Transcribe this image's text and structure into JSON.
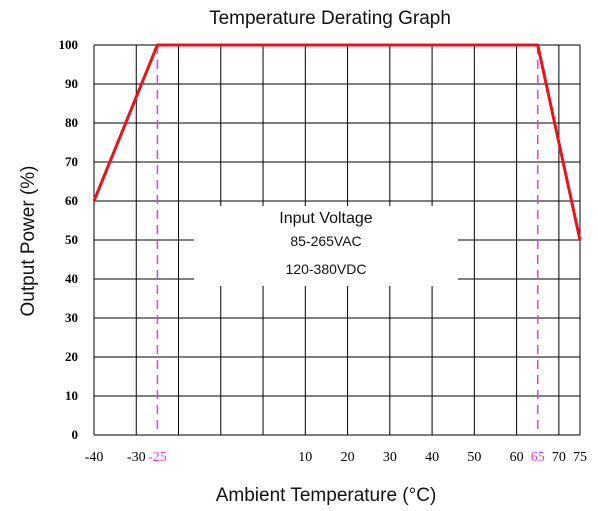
{
  "chart_data": {
    "type": "line",
    "title": "Temperature Derating Graph",
    "xlabel": "Ambient Temperature (°C)",
    "ylabel": "Output Power (%)",
    "xlim": [
      -40,
      75
    ],
    "ylim": [
      0,
      100
    ],
    "grid": true,
    "x_tick_labels": [
      "-40",
      "-30",
      "-25",
      "10",
      "20",
      "30",
      "40",
      "50",
      "60",
      "65",
      "70",
      "75"
    ],
    "x_tick_values": [
      -40,
      -30,
      -25,
      10,
      20,
      30,
      40,
      50,
      60,
      65,
      70,
      75
    ],
    "x_grid_values": [
      -40,
      -30,
      -20,
      -10,
      0,
      10,
      20,
      30,
      40,
      50,
      60,
      70,
      75
    ],
    "y_tick_labels": [
      "0",
      "10",
      "20",
      "30",
      "40",
      "50",
      "60",
      "70",
      "80",
      "90",
      "100"
    ],
    "y_tick_values": [
      0,
      10,
      20,
      30,
      40,
      50,
      60,
      70,
      80,
      90,
      100
    ],
    "highlight_x": [
      -25,
      65
    ],
    "series": [
      {
        "x": [
          -40,
          -25,
          65,
          75
        ],
        "y": [
          60,
          100,
          100,
          50
        ],
        "color": "#e8131b"
      }
    ],
    "annotation": {
      "title": "Input Voltage",
      "lines": [
        "85-265VAC",
        "120-380VDC"
      ]
    },
    "colors": {
      "line": "#e8131b",
      "marker": "#e040e0",
      "grid": "#000000"
    }
  }
}
